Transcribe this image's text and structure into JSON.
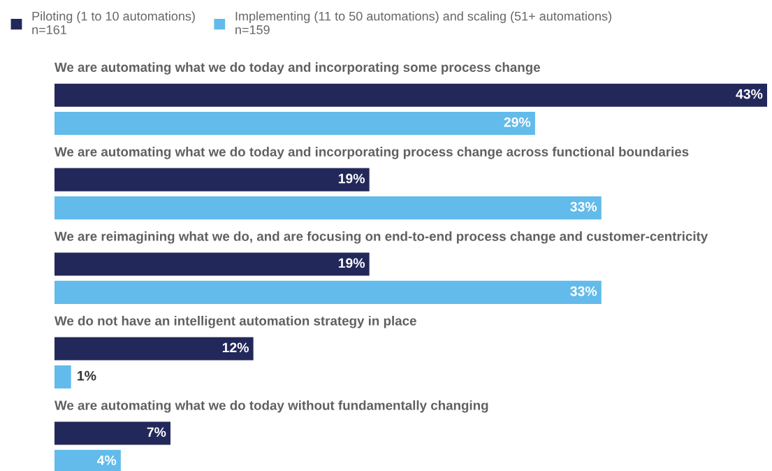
{
  "chart_data": {
    "type": "bar",
    "orientation": "horizontal",
    "categories": [
      "We are automating what we do today and incorporating some process change",
      "We are automating what we do today and incorporating process change across functional boundaries",
      "We are reimagining what we do, and are focusing on end-to-end process change and customer-centricity",
      "We do not have an intelligent automation strategy in place",
      "We are automating what we do today without fundamentally changing"
    ],
    "series": [
      {
        "name": "Piloting (1 to 10 automations)\nn=161",
        "color": "#23285a",
        "values": [
          43,
          19,
          19,
          12,
          7
        ],
        "value_labels": [
          "43%",
          "19%",
          "19%",
          "12%",
          "7%"
        ]
      },
      {
        "name": "Implementing (11 to 50 automations) and scaling (51+ automations)\nn=159",
        "color": "#62bbea",
        "values": [
          29,
          33,
          33,
          1,
          4
        ],
        "value_labels": [
          "29%",
          "33%",
          "33%",
          "1%",
          "4%"
        ]
      }
    ],
    "legend": "top left",
    "tick_labels": false
  }
}
